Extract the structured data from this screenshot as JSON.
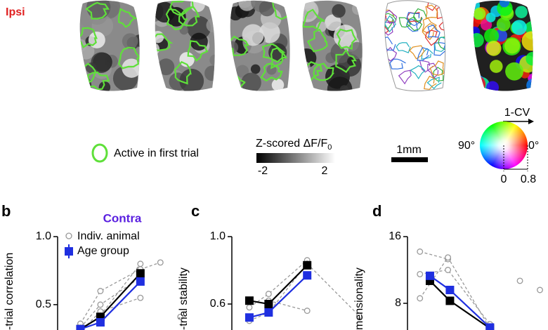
{
  "header": {
    "label": "Ipsi"
  },
  "legend": {
    "active": "Active in first trial",
    "zscore": "Z-scored ΔF/F",
    "zscore_sub": "0",
    "zmin": "-2",
    "zmax": "2",
    "scale": "1mm",
    "cv": "1-CV",
    "angle90": "90°",
    "angle0": "0°",
    "cv0": "0",
    "cv08": "0.8"
  },
  "panels": [
    "b",
    "c",
    "d"
  ],
  "chart_data": [
    {
      "type": "line",
      "title": "Contra",
      "ylabel": "-trial correlation",
      "legend_individual": "Indiv. animal",
      "legend_group": "Age group",
      "x": [
        1,
        2,
        4
      ],
      "xlim": [
        0,
        6.5
      ],
      "ylim": [
        0.2,
        1.0
      ],
      "yticks": [
        {
          "value": 1,
          "label": "1.0"
        },
        0.5
      ],
      "series": [
        {
          "color": "#000000",
          "values": [
            0.32,
            0.41,
            0.73
          ]
        },
        {
          "color": "#1f2fe0",
          "values": [
            0.32,
            0.37,
            0.67
          ]
        }
      ],
      "individual": {
        "color": "#999999",
        "x": [
          1,
          2,
          4,
          5,
          6
        ],
        "series": [
          [
            0.36,
            0.6,
            0.76,
            0.81,
            null
          ],
          [
            0.33,
            0.5,
            0.7,
            null,
            0.41
          ],
          [
            0.3,
            0.45,
            0.55,
            null,
            null
          ],
          [
            null,
            0.42,
            0.8,
            null,
            null
          ]
        ]
      }
    },
    {
      "type": "line",
      "ylabel": "-trial stability",
      "x": [
        1,
        2,
        4
      ],
      "xlim": [
        0,
        7
      ],
      "ylim": [
        0.4,
        1.0
      ],
      "yticks": [
        {
          "value": 1,
          "label": "1.0"
        },
        0.6
      ],
      "series": [
        {
          "color": "#000000",
          "values": [
            0.62,
            0.6,
            0.83
          ]
        },
        {
          "color": "#1f2fe0",
          "values": [
            0.52,
            0.55,
            0.77
          ]
        }
      ],
      "individual": {
        "color": "#999999",
        "x": [
          1,
          2,
          4,
          6.7
        ],
        "series": [
          [
            0.58,
            0.66,
            0.86,
            null
          ],
          [
            0.5,
            0.55,
            0.84,
            0.53
          ],
          [
            null,
            0.62,
            0.56,
            null
          ]
        ]
      }
    },
    {
      "type": "line",
      "ylabel": "mensionality",
      "x": [
        1,
        2,
        4
      ],
      "xlim": [
        0,
        6.5
      ],
      "ylim": [
        4,
        16
      ],
      "yticks": [
        16,
        8
      ],
      "series": [
        {
          "color": "#000000",
          "values": [
            10.7,
            8.3,
            5.0
          ]
        },
        {
          "color": "#1f2fe0",
          "values": [
            11.3,
            9.6,
            5.1
          ]
        }
      ],
      "individual": {
        "color": "#999999",
        "x": [
          0.5,
          1.9,
          4,
          5.5,
          6.5
        ],
        "series": [
          [
            14.2,
            13.3,
            null,
            10.7,
            null
          ],
          [
            8.6,
            13.5,
            5.0,
            null,
            9.6
          ],
          [
            11.5,
            12.0,
            5.5,
            null,
            null
          ]
        ]
      }
    }
  ]
}
